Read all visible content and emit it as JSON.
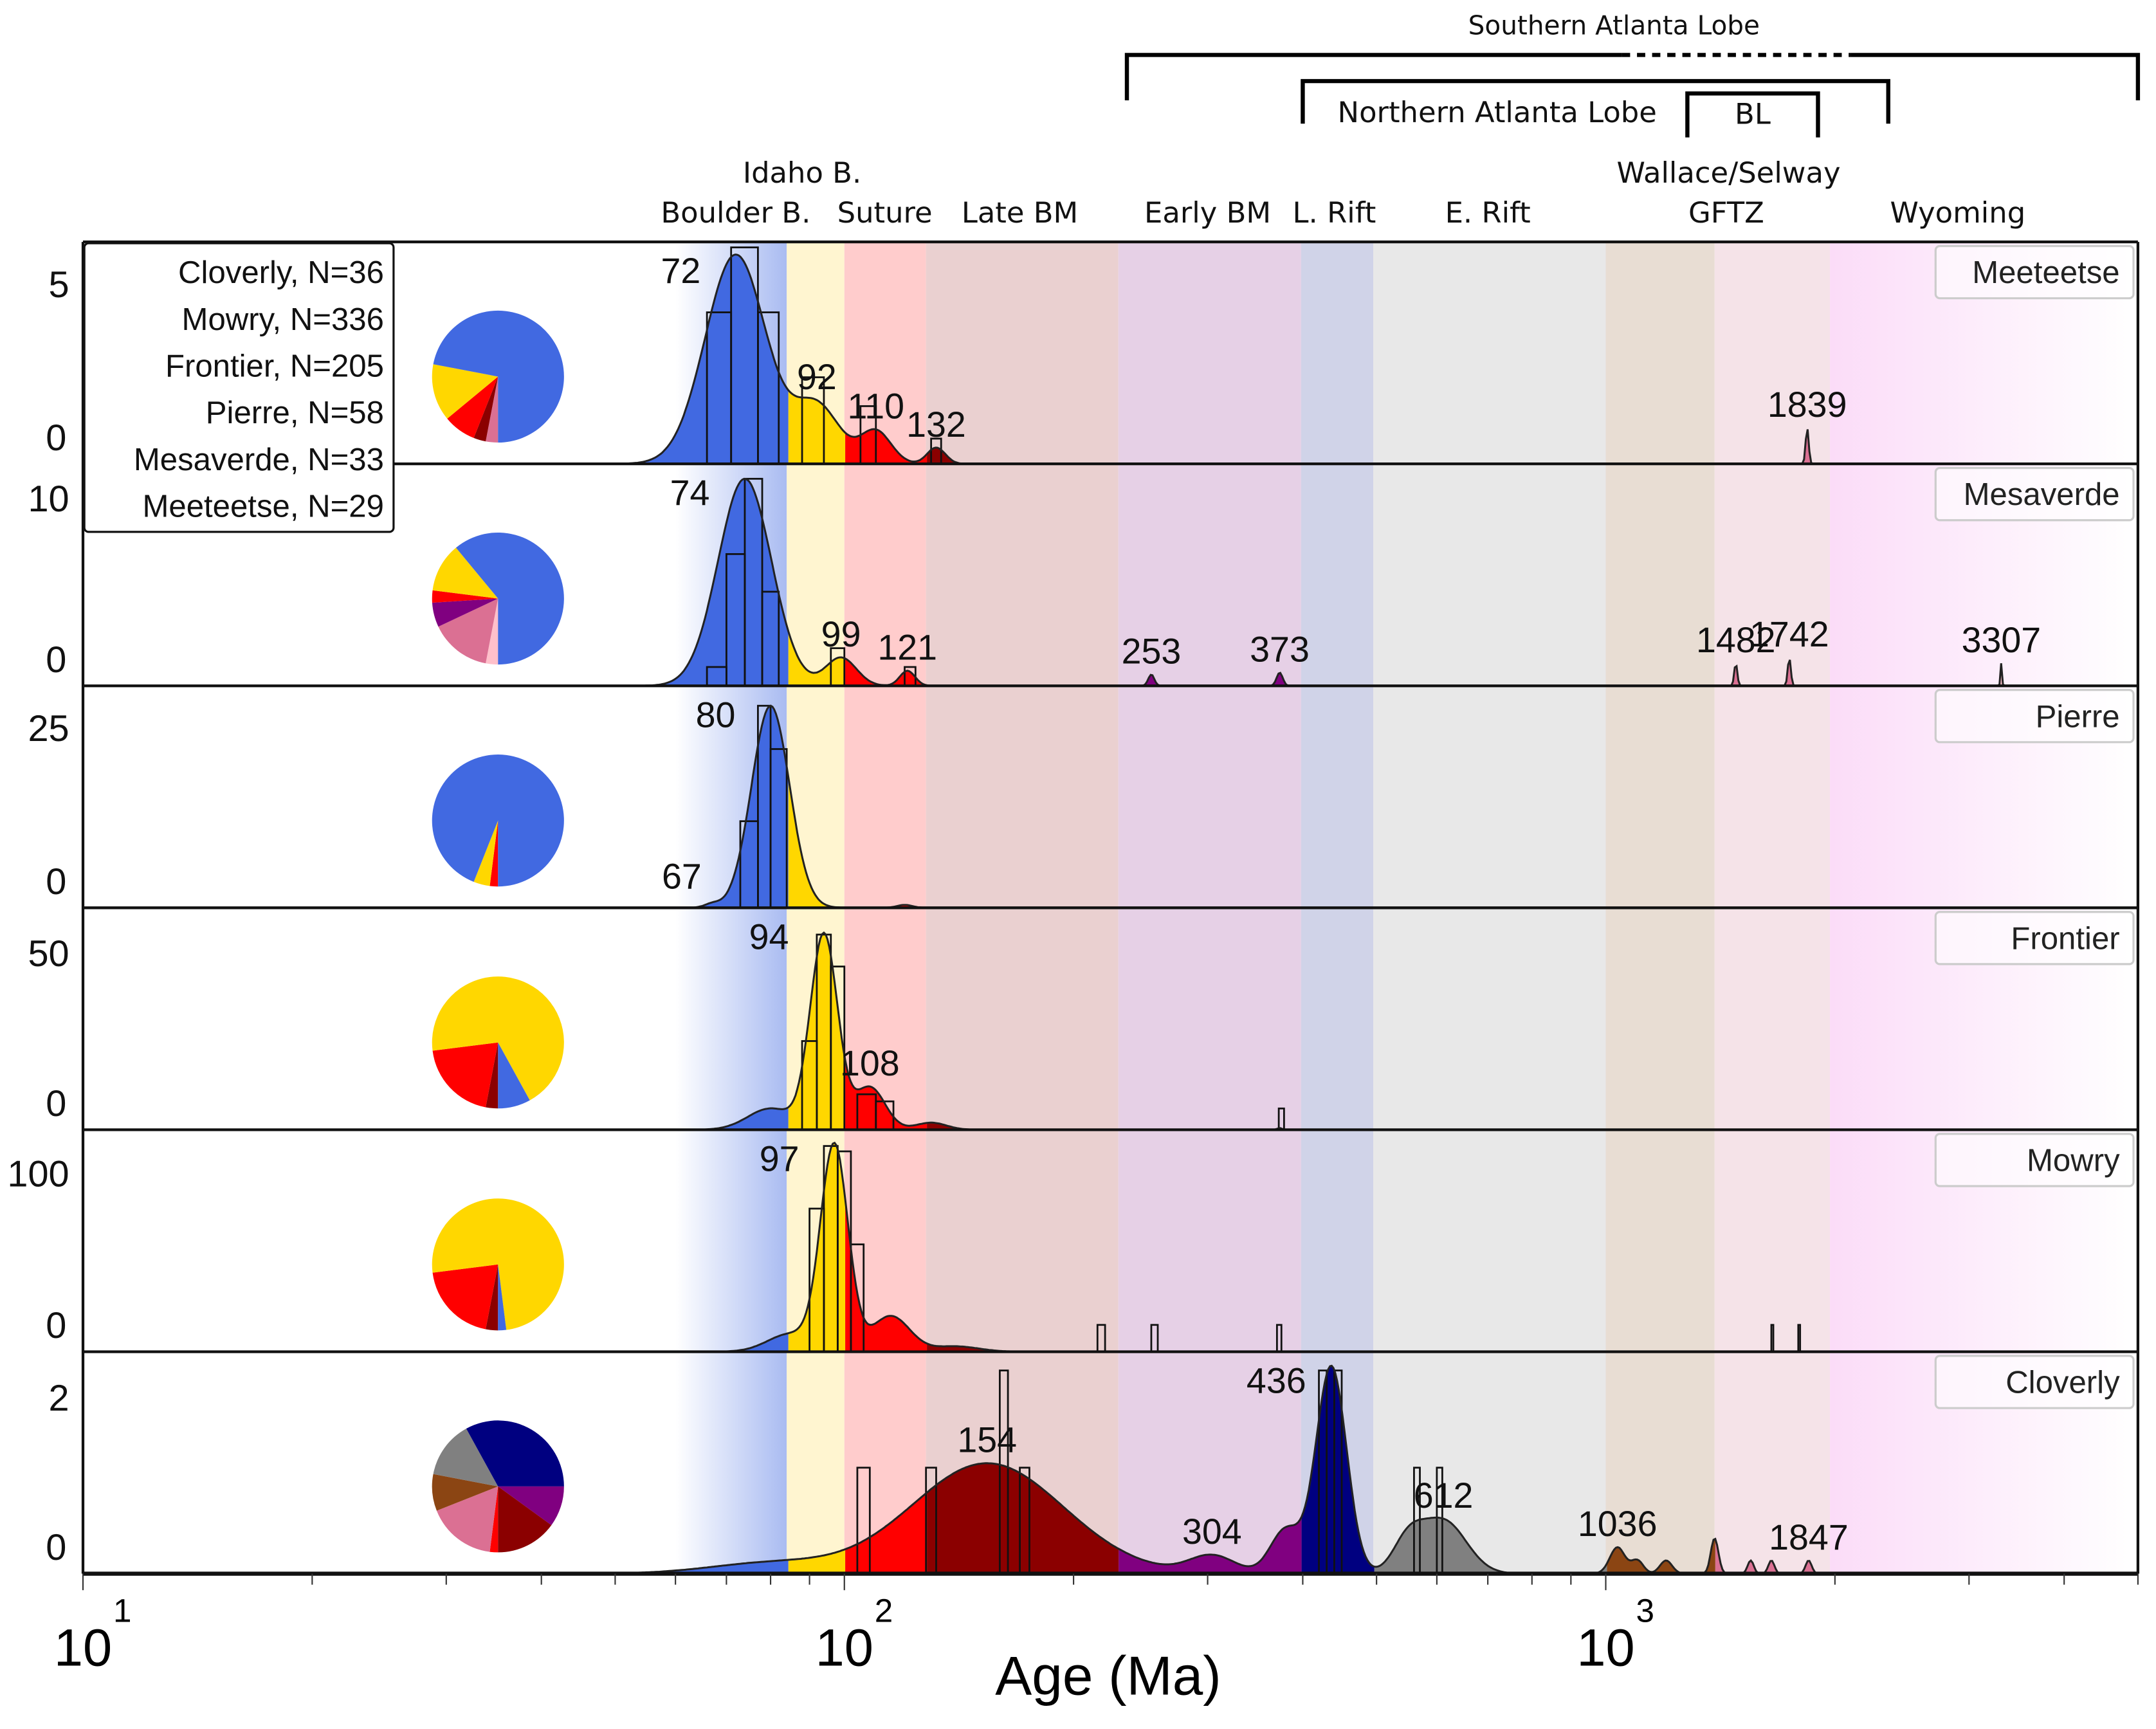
{
  "chart_data": {
    "type": "area",
    "title": "",
    "xlabel": "Age (Ma)",
    "xscale": "log",
    "xlim": [
      10,
      5000
    ],
    "x_tick_labels": [
      {
        "base": "10",
        "exp": "1",
        "value": 10
      },
      {
        "base": "10",
        "exp": "2",
        "value": 100
      },
      {
        "base": "10",
        "exp": "3",
        "value": 1000
      }
    ],
    "legend": {
      "placement": "top-left",
      "entries": [
        "Cloverly, N=36",
        "Mowry, N=336",
        "Frontier, N=205",
        "Pierre, N=58",
        "Mesaverde, N=33",
        "Meeteetse, N=29"
      ]
    },
    "source_regions": [
      {
        "name": "Boulder B.",
        "range": [
          60,
          84
        ],
        "band_color": "#4169e1",
        "fill": "#4169e1"
      },
      {
        "name": "Idaho B. / Suture (yellow)",
        "range": [
          84,
          100
        ],
        "band_color": "#fff5d0",
        "fill": "#ffd700"
      },
      {
        "name": "Suture",
        "range": [
          100,
          128
        ],
        "band_color": "#ffcccc",
        "fill": "#ff0000"
      },
      {
        "name": "Late BM",
        "range": [
          128,
          229
        ],
        "band_color": "#ead0d0",
        "fill": "#8b0000"
      },
      {
        "name": "Early BM",
        "range": [
          229,
          398
        ],
        "band_color": "#e6d0e6",
        "fill": "#800080"
      },
      {
        "name": "L. Rift",
        "range": [
          398,
          495
        ],
        "band_color": "#d0d3e8",
        "fill": "#000080"
      },
      {
        "name": "E. Rift",
        "range": [
          495,
          1000
        ],
        "band_color": "#e8e8e8",
        "fill": "#808080"
      },
      {
        "name": "Wallace/Selway",
        "range": [
          1000,
          1390
        ],
        "band_color": "#e8ddd3",
        "fill": "#8b4513"
      },
      {
        "name": "GFTZ",
        "range": [
          1390,
          1970
        ],
        "band_color": "#f5e3e8",
        "fill": "#db7093"
      },
      {
        "name": "Wyoming",
        "range": [
          1970,
          5000
        ],
        "band_color": "#fbdcf8",
        "fill": "#ffc0cb"
      }
    ],
    "region_labels": [
      {
        "text": "Boulder B.",
        "age": 72
      },
      {
        "text": "Idaho B.",
        "age": 88,
        "row": "upper"
      },
      {
        "text": "Suture",
        "age": 113
      },
      {
        "text": "Late BM",
        "age": 170
      },
      {
        "text": "Early BM",
        "age": 300
      },
      {
        "text": "L. Rift",
        "age": 440
      },
      {
        "text": "E. Rift",
        "age": 700
      },
      {
        "text": "Wallace/Selway",
        "age": 1450,
        "row": "upper"
      },
      {
        "text": "GFTZ",
        "age": 1440
      },
      {
        "text": "Wyoming",
        "age": 2900
      }
    ],
    "brackets": [
      {
        "name": "Southern Atlanta Lobe",
        "range": [
          235,
          5000
        ],
        "dashed_range": [
          1050,
          2100
        ],
        "level": 0
      },
      {
        "name": "Northern Atlanta Lobe",
        "range": [
          400,
          2350
        ],
        "level": 1
      },
      {
        "name": "BL",
        "range": [
          1280,
          1900
        ],
        "level": 2
      }
    ],
    "series": [
      {
        "name": "Meeteetse",
        "ylim": [
          0,
          6
        ],
        "yticks": [
          0,
          5
        ],
        "peaks": [
          [
            72,
            5.8,
            0.04
          ],
          [
            92,
            1.6,
            0.03
          ],
          [
            110,
            0.9,
            0.02
          ],
          [
            132,
            0.45,
            0.012
          ],
          [
            1839,
            1.0,
            0.002
          ]
        ],
        "peak_labels": [
          72,
          92,
          110,
          132,
          1839
        ],
        "histogram": [
          [
            66,
            71,
            4.2
          ],
          [
            71,
            77,
            6
          ],
          [
            77,
            82,
            4.2
          ],
          [
            88,
            94,
            2.4
          ],
          [
            105,
            110,
            1.6
          ],
          [
            130,
            134,
            0.7
          ]
        ],
        "pie": [
          [
            "#db7093",
            0.03
          ],
          [
            "#8b0000",
            0.03
          ],
          [
            "#ff0000",
            0.08
          ],
          [
            "#ffd700",
            0.14
          ],
          [
            "#4169e1",
            0.72
          ]
        ]
      },
      {
        "name": "Mesaverde",
        "ylim": [
          0,
          11.5
        ],
        "yticks": [
          0,
          10
        ],
        "peaks": [
          [
            74,
            11,
            0.035
          ],
          [
            99,
            1.5,
            0.02
          ],
          [
            121,
            0.8,
            0.01
          ],
          [
            253,
            0.6,
            0.004
          ],
          [
            373,
            0.7,
            0.004
          ],
          [
            1482,
            1.2,
            0.002
          ],
          [
            1742,
            1.5,
            0.002
          ],
          [
            3307,
            1.2,
            0.001
          ]
        ],
        "peak_labels": [
          74,
          99,
          121,
          253,
          373,
          1482,
          1742,
          3307
        ],
        "histogram": [
          [
            66,
            70,
            1
          ],
          [
            70,
            74,
            7
          ],
          [
            74,
            78,
            11
          ],
          [
            78,
            82,
            5
          ],
          [
            96,
            100,
            2
          ],
          [
            120,
            124,
            1
          ]
        ],
        "pie": [
          [
            "#ffc0cb",
            0.03
          ],
          [
            "#db7093",
            0.15
          ],
          [
            "#800080",
            0.06
          ],
          [
            "#ff0000",
            0.03
          ],
          [
            "#ffd700",
            0.12
          ],
          [
            "#4169e1",
            0.61
          ]
        ]
      },
      {
        "name": "Pierre",
        "ylim": [
          0,
          30
        ],
        "yticks": [
          0,
          25
        ],
        "peaks": [
          [
            80,
            28,
            0.025
          ],
          [
            67,
            0.5,
            0.01
          ],
          [
            120,
            0.4,
            0.01
          ]
        ],
        "peak_labels": [
          80,
          67
        ],
        "histogram": [
          [
            73,
            77,
            12
          ],
          [
            77,
            80,
            28
          ],
          [
            80,
            84,
            22
          ]
        ],
        "pie": [
          [
            "#ff0000",
            0.02
          ],
          [
            "#ffd700",
            0.04
          ],
          [
            "#4169e1",
            0.94
          ]
        ]
      },
      {
        "name": "Frontier",
        "ylim": [
          0,
          61
        ],
        "yticks": [
          0,
          50
        ],
        "peaks": [
          [
            94,
            55,
            0.018
          ],
          [
            108,
            12,
            0.02
          ],
          [
            80,
            6,
            0.03
          ],
          [
            130,
            2,
            0.02
          ],
          [
            373,
            0.5,
            0.003
          ]
        ],
        "peak_labels": [
          94,
          108
        ],
        "histogram": [
          [
            88,
            92,
            25
          ],
          [
            92,
            96,
            55
          ],
          [
            96,
            100,
            46
          ],
          [
            104,
            110,
            10
          ],
          [
            110,
            116,
            8
          ],
          [
            372,
            378,
            6
          ]
        ],
        "pie": [
          [
            "#8b0000",
            0.03
          ],
          [
            "#ff0000",
            0.2
          ],
          [
            "#ffd700",
            0.69
          ],
          [
            "#4169e1",
            0.08
          ]
        ]
      },
      {
        "name": "Mowry",
        "ylim": [
          0,
          121
        ],
        "yticks": [
          0,
          100
        ],
        "peaks": [
          [
            97,
            115,
            0.018
          ],
          [
            85,
            10,
            0.03
          ],
          [
            115,
            20,
            0.025
          ],
          [
            140,
            3,
            0.03
          ]
        ],
        "peak_labels": [
          97
        ],
        "histogram": [
          [
            90,
            94,
            80
          ],
          [
            94,
            98,
            115
          ],
          [
            98,
            102,
            112
          ],
          [
            102,
            106,
            60
          ],
          [
            215,
            220,
            15
          ],
          [
            253,
            258,
            15
          ],
          [
            370,
            375,
            15
          ],
          [
            1650,
            1660,
            15
          ],
          [
            1790,
            1800,
            15
          ]
        ],
        "pie": [
          [
            "#8b0000",
            0.03
          ],
          [
            "#ff0000",
            0.2
          ],
          [
            "#ffd700",
            0.75
          ],
          [
            "#4169e1",
            0.02
          ]
        ]
      },
      {
        "name": "Cloverly",
        "ylim": [
          0,
          2.45
        ],
        "yticks": [
          0,
          2
        ],
        "peaks": [
          [
            154,
            1.25,
            0.1
          ],
          [
            80,
            0.12,
            0.08
          ],
          [
            304,
            0.2,
            0.03
          ],
          [
            436,
            2.35,
            0.02
          ],
          [
            380,
            0.5,
            0.02
          ],
          [
            612,
            0.6,
            0.03
          ],
          [
            550,
            0.35,
            0.02
          ],
          [
            1036,
            0.3,
            0.01
          ],
          [
            1100,
            0.15,
            0.008
          ],
          [
            1200,
            0.15,
            0.008
          ],
          [
            1390,
            0.4,
            0.005
          ],
          [
            1550,
            0.15,
            0.004
          ],
          [
            1650,
            0.15,
            0.004
          ],
          [
            1847,
            0.15,
            0.004
          ]
        ],
        "peak_labels": [
          154,
          304,
          436,
          612,
          1036,
          1847
        ],
        "histogram": [
          [
            104,
            108,
            1.2
          ],
          [
            128,
            132,
            1.2
          ],
          [
            160,
            164,
            2.3
          ],
          [
            170,
            175,
            1.2
          ],
          [
            420,
            430,
            2.3
          ],
          [
            440,
            450,
            2.3
          ],
          [
            560,
            570,
            1.2
          ],
          [
            600,
            610,
            1.2
          ]
        ],
        "pie": [
          [
            "#ff0000",
            0.02
          ],
          [
            "#db7093",
            0.17
          ],
          [
            "#8b4513",
            0.09
          ],
          [
            "#808080",
            0.14
          ],
          [
            "#000080",
            0.33
          ],
          [
            "#800080",
            0.1
          ],
          [
            "#8b0000",
            0.15
          ]
        ]
      }
    ]
  }
}
